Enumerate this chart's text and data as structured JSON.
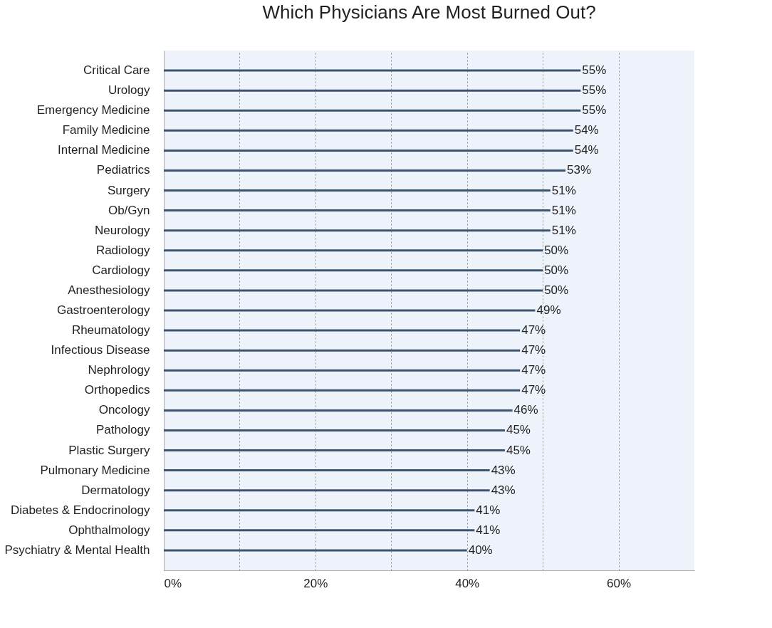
{
  "chart_data": {
    "type": "bar",
    "orientation": "horizontal",
    "title": "Which Physicians Are Most Burned Out?",
    "categories": [
      "Critical Care",
      "Urology",
      "Emergency Medicine",
      "Family Medicine",
      "Internal Medicine",
      "Pediatrics",
      "Surgery",
      "Ob/Gyn",
      "Neurology",
      "Radiology",
      "Cardiology",
      "Anesthesiology",
      "Gastroenterology",
      "Rheumatology",
      "Infectious Disease",
      "Nephrology",
      "Orthopedics",
      "Oncology",
      "Pathology",
      "Plastic Surgery",
      "Pulmonary Medicine",
      "Dermatology",
      "Diabetes & Endocrinology",
      "Ophthalmology",
      "Psychiatry & Mental Health"
    ],
    "values": [
      55,
      55,
      55,
      54,
      54,
      53,
      51,
      51,
      51,
      50,
      50,
      50,
      49,
      47,
      47,
      47,
      47,
      46,
      45,
      45,
      43,
      43,
      41,
      41,
      40
    ],
    "value_labels": [
      "55%",
      "55%",
      "55%",
      "54%",
      "54%",
      "53%",
      "51%",
      "51%",
      "51%",
      "50%",
      "50%",
      "50%",
      "49%",
      "47%",
      "47%",
      "47%",
      "47%",
      "46%",
      "45%",
      "45%",
      "43%",
      "43%",
      "41%",
      "41%",
      "40%"
    ],
    "color": "#3d5470",
    "xlim": [
      0,
      70
    ],
    "xticks": [
      {
        "value": 0,
        "label": "0%"
      },
      {
        "value": 10,
        "label": null
      },
      {
        "value": 20,
        "label": "20%"
      },
      {
        "value": 30,
        "label": null
      },
      {
        "value": 40,
        "label": "40%"
      },
      {
        "value": 50,
        "label": null
      },
      {
        "value": 60,
        "label": "60%"
      }
    ],
    "grid": "x"
  }
}
